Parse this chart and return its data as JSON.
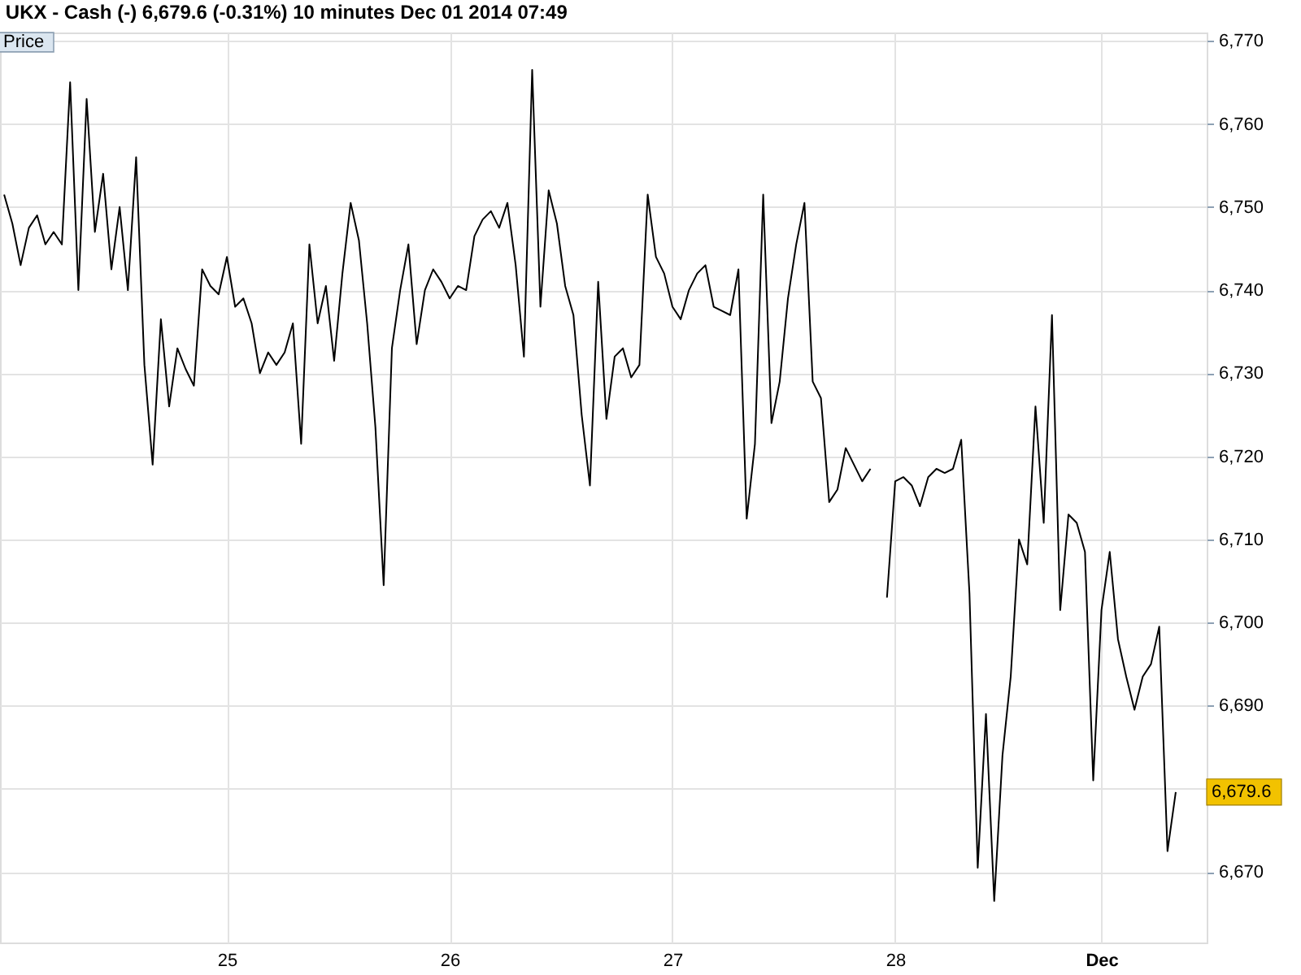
{
  "chart_data": {
    "type": "line",
    "title": "UKX - Cash (-) 6,679.6 (-0.31%) 10 minutes Dec 01 2014 07:49",
    "ylabel": "Price",
    "categories": [
      null,
      null,
      null,
      null,
      null,
      null,
      null,
      null,
      null,
      null,
      null,
      null,
      null,
      null,
      null,
      null,
      null,
      null,
      null,
      null,
      null,
      null,
      null,
      null,
      null,
      null,
      null,
      "25",
      null,
      null,
      null,
      null,
      null,
      null,
      null,
      null,
      null,
      null,
      null,
      null,
      null,
      null,
      null,
      null,
      null,
      null,
      null,
      null,
      null,
      null,
      null,
      null,
      null,
      null,
      "26",
      null,
      null,
      null,
      null,
      null,
      null,
      null,
      null,
      null,
      null,
      null,
      null,
      null,
      null,
      null,
      null,
      null,
      null,
      null,
      null,
      null,
      null,
      null,
      null,
      null,
      null,
      "27",
      null,
      null,
      null,
      null,
      null,
      null,
      null,
      null,
      null,
      null,
      null,
      null,
      null,
      null,
      null,
      null,
      null,
      null,
      null,
      null,
      null,
      null,
      null,
      null,
      null,
      null,
      "28",
      null,
      null,
      null,
      null,
      null,
      null,
      null,
      null,
      null,
      null,
      null,
      null,
      null,
      null,
      null,
      null,
      null,
      null,
      null,
      null,
      null,
      null,
      null,
      null,
      "Dec",
      null,
      null,
      null,
      null,
      null,
      null,
      null,
      null,
      null
    ],
    "series": [
      {
        "color": "#000000",
        "values": [
          6751.5,
          6748,
          6743,
          6747.5,
          6749,
          6745.5,
          6747,
          6745.5,
          6765,
          6740,
          6763,
          6747,
          6754,
          6742.5,
          6750,
          6740,
          6756,
          6731,
          6719,
          6736.5,
          6726,
          6733,
          6730.5,
          6728.5,
          6742.5,
          6740.5,
          6739.5,
          6744,
          6738,
          6739,
          6736,
          6730,
          6732.5,
          6731,
          6732.5,
          6736,
          6721.5,
          6745.5,
          6736,
          6740.5,
          6731.5,
          6742,
          6750.5,
          6746,
          6736,
          6723.5,
          6704.5,
          6733,
          6740,
          6745.5,
          6733.5,
          6740,
          6742.5,
          6741,
          6739,
          6740.5,
          6740,
          6746.5,
          6748.5,
          6749.5,
          6747.5,
          6750.5,
          6743,
          6732,
          6766.5,
          6738,
          6752,
          6748,
          6740.5,
          6737,
          6725,
          6716.5,
          6741,
          6724.5,
          6732,
          6733,
          6729.5,
          6731,
          6751.5,
          6744,
          6742,
          6738,
          6736.5,
          6740,
          6742,
          6743,
          6738,
          6737.5,
          6737,
          6742.5,
          6712.5,
          6721.5,
          6751.5,
          6724,
          6729,
          6739,
          6745.5,
          6750.5,
          6729,
          6727,
          6714.5,
          6716,
          6721,
          6719,
          6717,
          6718.5,
          null,
          6703,
          6717,
          6717.5,
          6716.5,
          6714,
          6717.5,
          6718.5,
          6718,
          6718.5,
          6722,
          6703.5,
          6670.5,
          6689,
          6666.5,
          6684,
          6693.5,
          6710,
          6707,
          6726,
          6712,
          6737,
          6701.5,
          6713,
          6712,
          6708.5,
          6681,
          6701.5,
          6708.5,
          6698,
          6693.5,
          6689.5,
          6693.5,
          6695,
          6699.5,
          6672.5,
          6679.6
        ]
      }
    ],
    "ylim": [
      6661.5,
      6771
    ],
    "yticks": [
      {
        "value": 6670,
        "label": "6,670"
      },
      {
        "value": 6680,
        "label": null
      },
      {
        "value": 6690,
        "label": "6,690"
      },
      {
        "value": 6700,
        "label": "6,700"
      },
      {
        "value": 6710,
        "label": "6,710"
      },
      {
        "value": 6720,
        "label": "6,720"
      },
      {
        "value": 6730,
        "label": "6,730"
      },
      {
        "value": 6740,
        "label": "6,740"
      },
      {
        "value": 6750,
        "label": "6,750"
      },
      {
        "value": 6760,
        "label": "6,760"
      },
      {
        "value": 6770,
        "label": "6,770"
      }
    ],
    "grid": true,
    "annotations": [
      "6,679.6"
    ]
  }
}
